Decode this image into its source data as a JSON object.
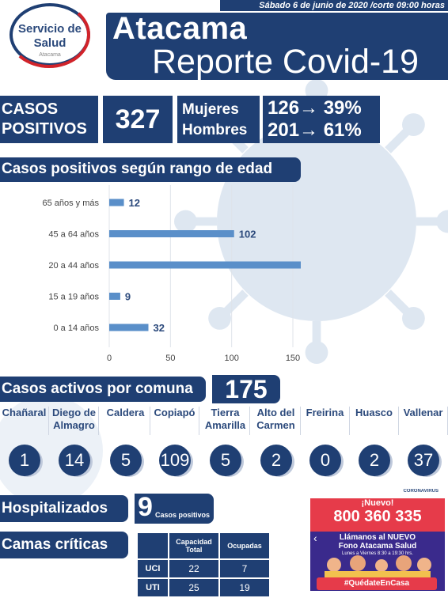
{
  "header": {
    "date": "Sábado 6 de junio de 2020 /corte 09:00 horas",
    "logo_line1": "Servicio de",
    "logo_line2": "Salud",
    "logo_line3": "Atacama",
    "title": "Atacama",
    "subtitle": "Reporte Covid-19"
  },
  "summary": {
    "casos_label_1": "CASOS",
    "casos_label_2": "POSITIVOS",
    "casos_value": "327",
    "mujeres_label": "Mujeres",
    "hombres_label": "Hombres",
    "mujeres_value": "126→ 39%",
    "hombres_value": "201→ 61%"
  },
  "edad_section": {
    "title": "Casos positivos según rango de edad"
  },
  "chart_data": {
    "type": "bar",
    "orientation": "horizontal",
    "title": "Casos positivos según rango de edad",
    "categories": [
      "65 años y más",
      "45 a 64 años",
      "20 a 44 años",
      "15 a 19 años",
      "0 a 14 años"
    ],
    "values": [
      12,
      102,
      172,
      9,
      32
    ],
    "xlim": [
      0,
      150
    ],
    "xticks": [
      0,
      50,
      100,
      150
    ],
    "grid": true,
    "colors": {
      "bar": "#5a8fc9",
      "label": "#2c4a7c"
    }
  },
  "activos": {
    "title": "Casos activos por comuna",
    "total": "175",
    "comunas": [
      {
        "name": "Chañaral",
        "value": "1"
      },
      {
        "name": "Diego de Almagro",
        "value": "14"
      },
      {
        "name": "Caldera",
        "value": "5"
      },
      {
        "name": "Copiapó",
        "value": "109"
      },
      {
        "name": "Tierra Amarilla",
        "value": "5"
      },
      {
        "name": "Alto del Carmen",
        "value": "2"
      },
      {
        "name": "Freirina",
        "value": "0"
      },
      {
        "name": "Huasco",
        "value": "2"
      },
      {
        "name": "Vallenar",
        "value": "37"
      }
    ]
  },
  "hospitalizados": {
    "title": "Hospitalizados",
    "value": "9",
    "sub": "Casos positivos"
  },
  "camas": {
    "title": "Camas críticas",
    "headers": [
      "",
      "Capacidad Total",
      "Ocupadas"
    ],
    "rows": [
      {
        "label": "UCI",
        "capacidad": "22",
        "ocupadas": "7"
      },
      {
        "label": "UTI",
        "capacidad": "25",
        "ocupadas": "19"
      }
    ]
  },
  "promo": {
    "top": "CORONAVIRUS",
    "nuevo": "¡Nuevo!",
    "phone": "800 360 335",
    "line1": "Llámanos al NUEVO",
    "line2": "Fono Atacama Salud",
    "line3": "Lunes a Viernes 8:30 a 19:30 hrs.",
    "hashtag": "#QuédateEnCasa"
  },
  "colors": {
    "primary": "#1f3f73",
    "accent": "#d1232a",
    "bar": "#5a8fc9"
  }
}
